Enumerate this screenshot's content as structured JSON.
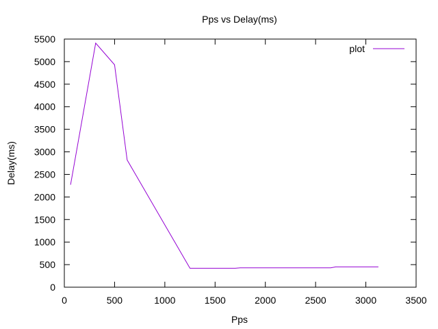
{
  "chart_data": {
    "type": "line",
    "title": "Pps vs Delay(ms)",
    "xlabel": "Pps",
    "ylabel": "Delay(ms)",
    "xlim": [
      0,
      3500
    ],
    "ylim": [
      0,
      5500
    ],
    "xticks": [
      0,
      500,
      1000,
      1500,
      2000,
      2500,
      3000,
      3500
    ],
    "yticks": [
      0,
      500,
      1000,
      1500,
      2000,
      2500,
      3000,
      3500,
      4000,
      4500,
      5000,
      5500
    ],
    "grid": false,
    "legend_position": "top-right",
    "series": [
      {
        "name": "plot",
        "color": "#9400d3",
        "x": [
          62,
          312,
          500,
          625,
          1250,
          1700,
          1750,
          2650,
          2700,
          3125
        ],
        "y": [
          2270,
          5410,
          4930,
          2820,
          420,
          420,
          430,
          430,
          450,
          450
        ]
      }
    ]
  }
}
